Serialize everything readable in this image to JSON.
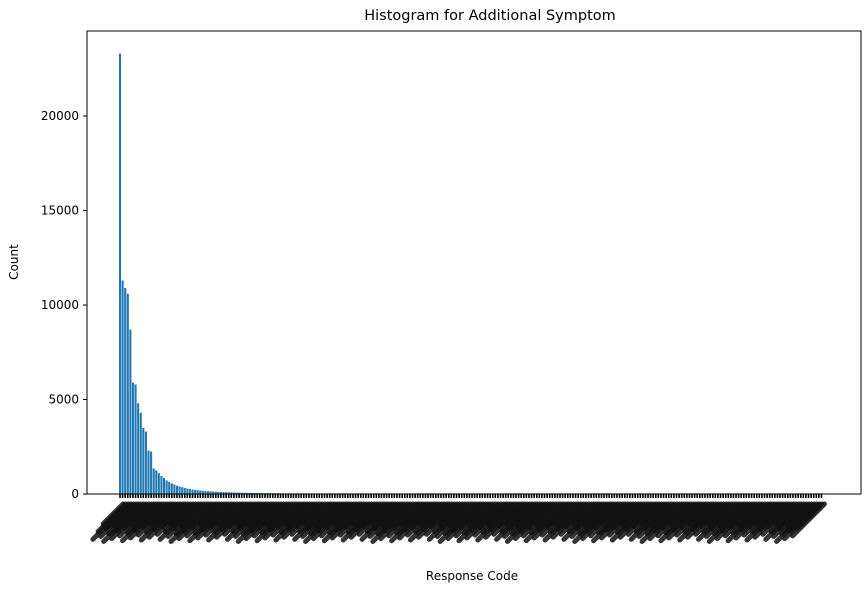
{
  "chart_data": {
    "type": "bar",
    "title": "Histogram for Additional Symptom",
    "xlabel": "Response Code",
    "ylabel": "Count",
    "ylim": [
      0,
      24500
    ],
    "yticks": [
      0,
      5000,
      10000,
      15000,
      20000
    ],
    "yticklabels": [
      "0",
      "5000",
      "10000",
      "15000",
      "20000"
    ],
    "grid": false,
    "legend": "none",
    "bar_color": "#1f77b4",
    "xtick_rotation_deg": 45,
    "category_count": 270,
    "xtick_labels_legible": false,
    "values": [
      23300,
      11300,
      10900,
      10600,
      8700,
      5900,
      5800,
      4800,
      4300,
      3500,
      3300,
      2300,
      2250,
      1350,
      1250,
      1100,
      950,
      850,
      720,
      640,
      560,
      500,
      440,
      400,
      360,
      320,
      290,
      265,
      240,
      220,
      200,
      185,
      170,
      160,
      150,
      140,
      130,
      122,
      115,
      108,
      102,
      96,
      91,
      86,
      81,
      77,
      73,
      69,
      66,
      63,
      60,
      57,
      55,
      52,
      50,
      48,
      46,
      44,
      42,
      41,
      39,
      38,
      36,
      35,
      34,
      33,
      32,
      31,
      30,
      29,
      28,
      27,
      27,
      26,
      25,
      25,
      24,
      23,
      23,
      22,
      22,
      21,
      21,
      20,
      20,
      19,
      19,
      18,
      18,
      18,
      17,
      17,
      17,
      16,
      16,
      16,
      15,
      15,
      15,
      14,
      14,
      14,
      14,
      13,
      13,
      13,
      13,
      12,
      12,
      12,
      12,
      11,
      11,
      11,
      11,
      11,
      10,
      10,
      10,
      10,
      10,
      10,
      9,
      9,
      9,
      9,
      9,
      9,
      8,
      8,
      8,
      8,
      8,
      8,
      8,
      7,
      7,
      7,
      7,
      7,
      7,
      7,
      7,
      6,
      6,
      6,
      6,
      6,
      6,
      6,
      6,
      6,
      5,
      5,
      5,
      5,
      5,
      5,
      5,
      5,
      5,
      5,
      4,
      4,
      4,
      4,
      4,
      4,
      4,
      4,
      4,
      4,
      4,
      4,
      3,
      3,
      3,
      3,
      3,
      3,
      3,
      3,
      3,
      3,
      3,
      3,
      3,
      3,
      3,
      3,
      2,
      2,
      2,
      2,
      2,
      2,
      2,
      2,
      2,
      2,
      2,
      2,
      2,
      2,
      2,
      2,
      2,
      2,
      2,
      2,
      2,
      2,
      1,
      1,
      1,
      1,
      1,
      1,
      1,
      1,
      1,
      1,
      1,
      1,
      1,
      1,
      1,
      1,
      1,
      1,
      1,
      1,
      1,
      1,
      1,
      1,
      1,
      1,
      1,
      1,
      1,
      1,
      1,
      1,
      1,
      1,
      1,
      1,
      1,
      1,
      1,
      1,
      1,
      1,
      1,
      1,
      1,
      1,
      1,
      1,
      1,
      1,
      1,
      1,
      1,
      1,
      1,
      1,
      1,
      1,
      1,
      1
    ]
  }
}
